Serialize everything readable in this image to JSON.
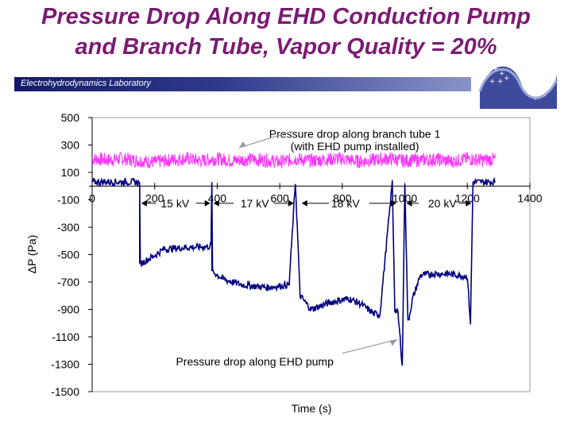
{
  "slide": {
    "title_line1": "Pressure Drop Along EHD Conduction Pump",
    "title_line2": "and Branch Tube, Vapor Quality = 20%",
    "lab_name": "Electrohydrodynamics Laboratory"
  },
  "colors": {
    "title": "#7b1b73",
    "header_bar": "#1f2a7a",
    "branch_series": "#ff33ff",
    "pump_series": "#000080",
    "plot_bg": "#ffffff"
  },
  "logo": {
    "icon": "ehd-lab-logo-icon"
  },
  "chart_data": {
    "type": "line",
    "xlabel": "Time (s)",
    "ylabel": "ΔP (Pa)",
    "xlim": [
      0,
      1400
    ],
    "ylim": [
      -1500,
      500
    ],
    "x_ticks": [
      0,
      200,
      400,
      600,
      800,
      1000,
      1200,
      1400
    ],
    "y_ticks": [
      500,
      300,
      100,
      -100,
      -300,
      -500,
      -700,
      -900,
      -1100,
      -1300,
      -1500
    ],
    "x_tick_labels": [
      "0",
      "200",
      "400",
      "600",
      "800",
      "1000",
      "1200",
      "1400"
    ],
    "y_tick_labels": [
      "500",
      "300",
      "100",
      "-100",
      "-300",
      "-500",
      "-700",
      "-900",
      "-1100",
      "-1300",
      "-1500"
    ],
    "grid": false,
    "series": [
      {
        "key": "branch",
        "color": "#ff33ff",
        "x": [
          0,
          50,
          100,
          150,
          200,
          250,
          300,
          350,
          400,
          450,
          500,
          550,
          600,
          650,
          700,
          750,
          800,
          850,
          900,
          950,
          1000,
          1050,
          1100,
          1150,
          1200,
          1250,
          1290
        ],
        "y": [
          200,
          190,
          200,
          185,
          175,
          190,
          200,
          185,
          200,
          185,
          195,
          190,
          175,
          200,
          185,
          195,
          200,
          180,
          190,
          200,
          185,
          190,
          195,
          180,
          200,
          190,
          195
        ],
        "spread": 50
      },
      {
        "key": "pump",
        "color": "#000080",
        "x": [
          0,
          140,
          152,
          152,
          190,
          230,
          290,
          380,
          383,
          383,
          420,
          480,
          560,
          630,
          650,
          665,
          700,
          760,
          820,
          860,
          900,
          920,
          960,
          968,
          978,
          985,
          992,
          1000,
          1010,
          1025,
          1050,
          1090,
          1140,
          1200,
          1210,
          1218,
          1222,
          1240,
          1290
        ],
        "y": [
          30,
          30,
          20,
          -570,
          -520,
          -460,
          -450,
          -440,
          30,
          -620,
          -680,
          -720,
          -740,
          -720,
          30,
          -800,
          -900,
          -850,
          -820,
          -860,
          -930,
          -940,
          30,
          -900,
          -930,
          -1110,
          -1320,
          30,
          -1000,
          -820,
          -650,
          -640,
          -640,
          -660,
          -1000,
          30,
          30,
          30,
          30
        ],
        "noise": 25
      }
    ],
    "annotations": [
      {
        "key": "branch_label_1",
        "text": "Pressure drop along branch tube 1",
        "x": 840,
        "y": 380
      },
      {
        "key": "branch_label_2",
        "text": "(with EHD pump installed)",
        "x": 840,
        "y": 290
      },
      {
        "key": "pump_label",
        "text": "Pressure drop along EHD pump",
        "x": 520,
        "y": -1280
      },
      {
        "key": "kv15",
        "text": "15 kV",
        "x": 265,
        "y": -125
      },
      {
        "key": "kv17",
        "text": "17 kV",
        "x": 520,
        "y": -125
      },
      {
        "key": "kv18",
        "text": "18 kV",
        "x": 810,
        "y": -125
      },
      {
        "key": "kv20",
        "text": "20 kV",
        "x": 1120,
        "y": -125
      }
    ],
    "voltage_intervals": [
      {
        "label": "15 kV",
        "start": 152,
        "end": 383
      },
      {
        "label": "17 kV",
        "start": 383,
        "end": 650
      },
      {
        "label": "18 kV",
        "start": 665,
        "end": 978
      },
      {
        "label": "20 kV",
        "start": 1000,
        "end": 1218
      }
    ]
  }
}
